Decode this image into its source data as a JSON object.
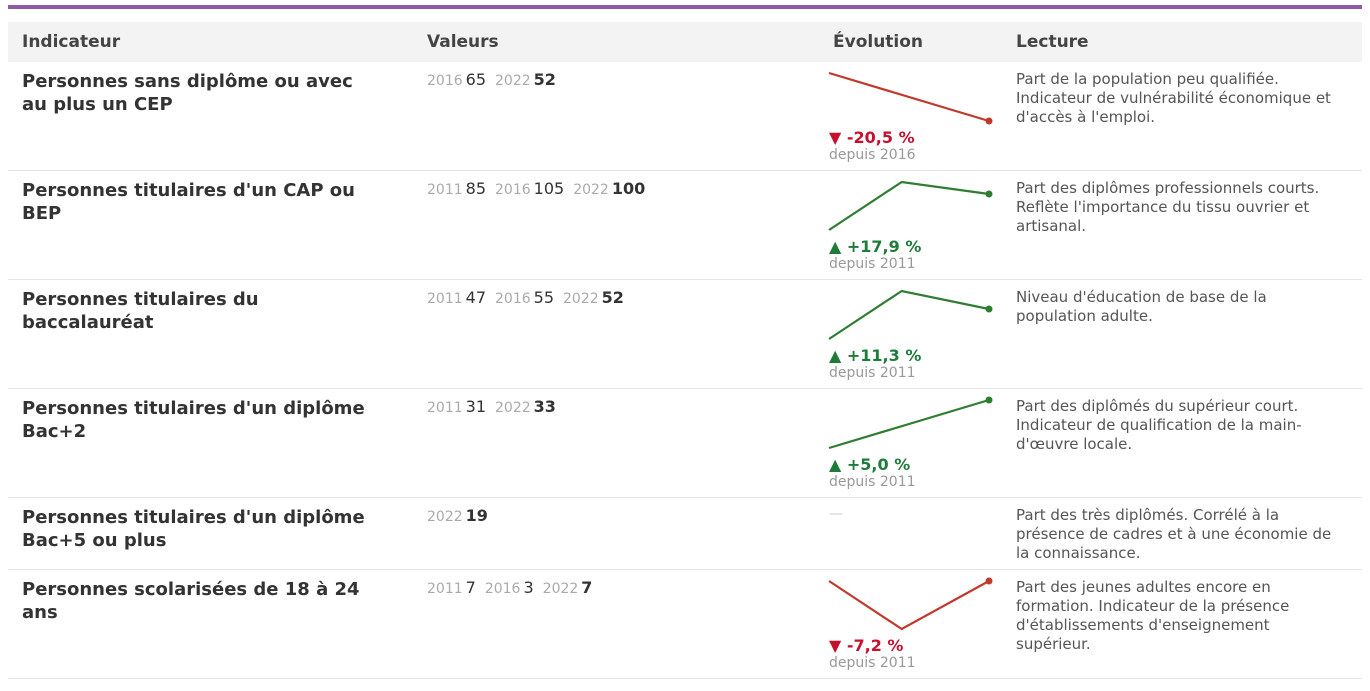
{
  "table": {
    "columns": [
      "Indicateur",
      "Valeurs",
      "Évolution",
      "Lecture"
    ],
    "rows": [
      {
        "indicator": "Personnes sans diplôme ou avec au plus un CEP",
        "color": "#c0392b",
        "values": [
          {
            "year": 2016,
            "value": 65
          },
          {
            "year": 2022,
            "value": 52
          }
        ],
        "evolution": {
          "change": "▼ -20,5 %",
          "since": "depuis 2016",
          "trend": "down"
        },
        "lecture": "Part de la population peu qualifiée. Indicateur de vulnérabilité économique et d'accès à l'emploi."
      },
      {
        "indicator": "Personnes titulaires d'un CAP ou BEP",
        "color": "#2e7d32",
        "values": [
          {
            "year": 2011,
            "value": 85
          },
          {
            "year": 2016,
            "value": 105
          },
          {
            "year": 2022,
            "value": 100
          }
        ],
        "evolution": {
          "change": "▲ +17,9 %",
          "since": "depuis 2011",
          "trend": "up"
        },
        "lecture": "Part des diplômes professionnels courts. Reflète l'importance du tissu ouvrier et artisanal."
      },
      {
        "indicator": "Personnes titulaires du baccalauréat",
        "color": "#2e7d32",
        "values": [
          {
            "year": 2011,
            "value": 47
          },
          {
            "year": 2016,
            "value": 55
          },
          {
            "year": 2022,
            "value": 52
          }
        ],
        "evolution": {
          "change": "▲ +11,3 %",
          "since": "depuis 2011",
          "trend": "up"
        },
        "lecture": "Niveau d'éducation de base de la population adulte."
      },
      {
        "indicator": "Personnes titulaires d'un diplôme Bac+2",
        "color": "#2e7d32",
        "values": [
          {
            "year": 2011,
            "value": 31
          },
          {
            "year": 2022,
            "value": 33
          }
        ],
        "evolution": {
          "change": "▲ +5,0 %",
          "since": "depuis 2011",
          "trend": "up"
        },
        "lecture": "Part des diplômés du supérieur court. Indicateur de qualification de la main-d'œuvre locale."
      },
      {
        "indicator": "Personnes titulaires d'un diplôme Bac+5 ou plus",
        "color": "#2e7d32",
        "values": [
          {
            "year": 2022,
            "value": 19
          }
        ],
        "evolution": {
          "placeholder": "—"
        },
        "lecture": "Part des très diplômés. Corrélé à la présence de cadres et à une économie de la connaissance."
      },
      {
        "indicator": "Personnes scolarisées de 18 à 24 ans",
        "color": "#c0392b",
        "values": [
          {
            "year": 2011,
            "value": 7
          },
          {
            "year": 2016,
            "value": 3
          },
          {
            "year": 2022,
            "value": 7
          }
        ],
        "evolution": {
          "change": "▼ -7,2 %",
          "since": "depuis 2011",
          "trend": "down"
        },
        "lecture": "Part des jeunes adultes encore en formation. Indicateur de la présence d'établissements d'enseignement supérieur."
      }
    ]
  }
}
